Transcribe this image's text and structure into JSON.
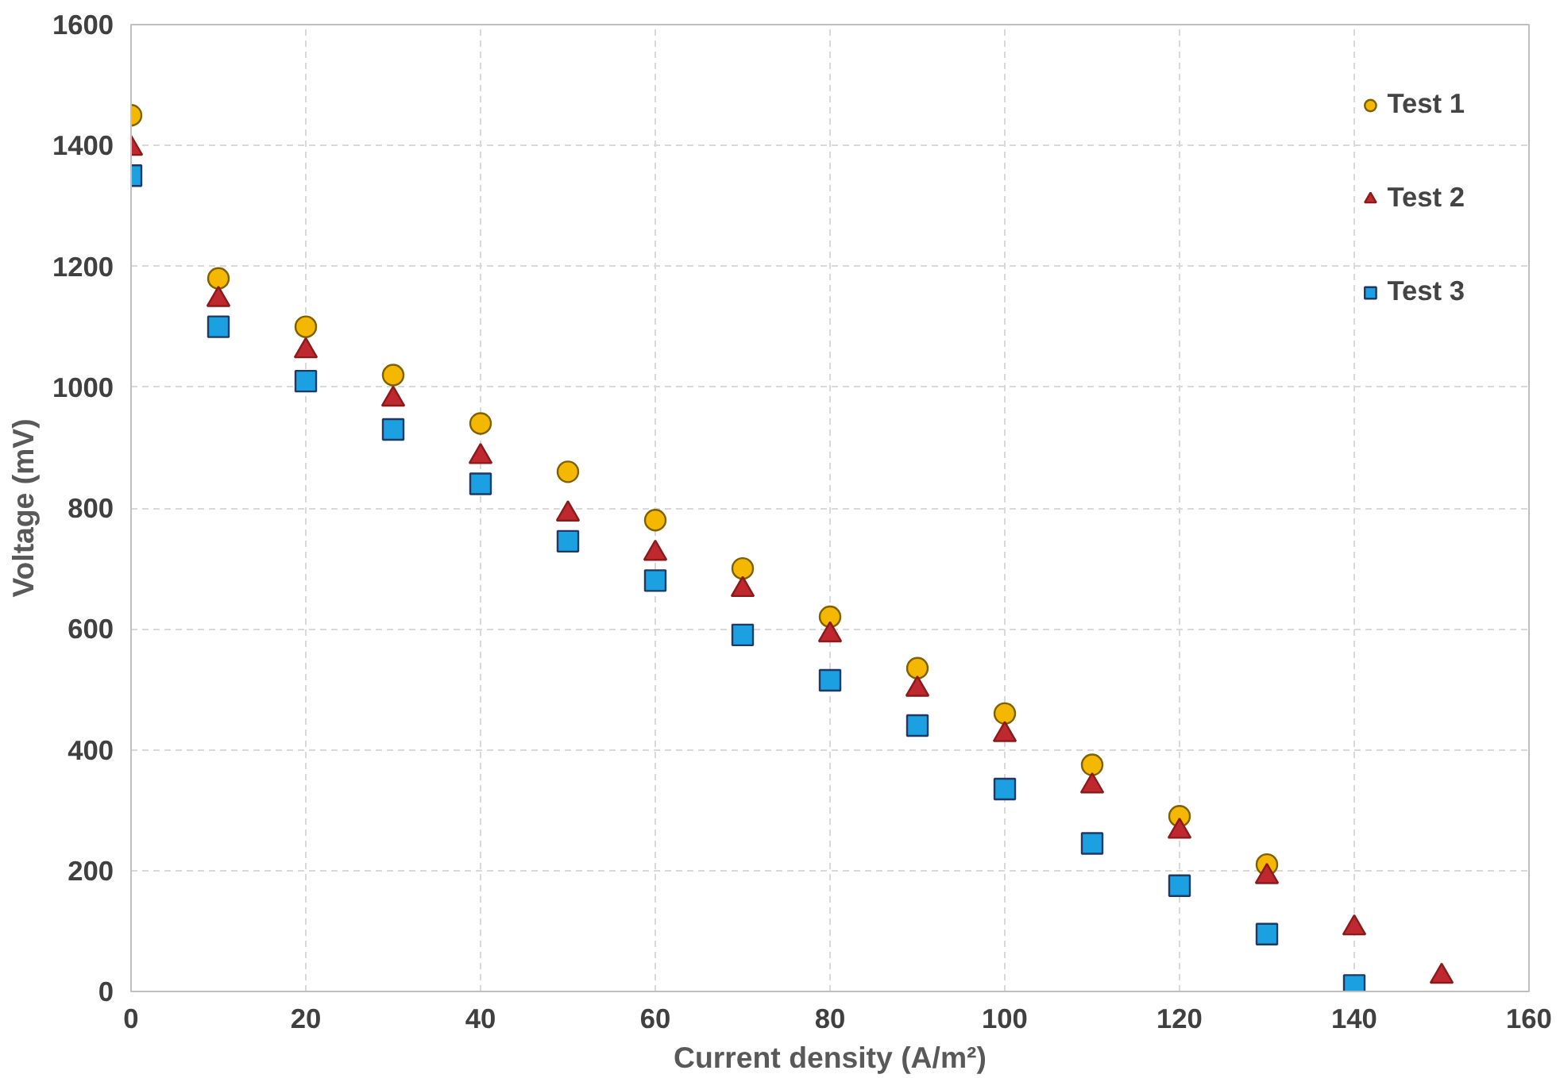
{
  "chart_data": {
    "type": "scatter",
    "xlabel": "Current density (A/m²)",
    "ylabel": "Voltage (mV)",
    "xlim": [
      0,
      160
    ],
    "ylim": [
      0,
      1600
    ],
    "xticks": [
      0,
      20,
      40,
      60,
      80,
      100,
      120,
      140,
      160
    ],
    "yticks": [
      0,
      200,
      400,
      600,
      800,
      1000,
      1200,
      1400,
      1600
    ],
    "grid": true,
    "legend": "top right",
    "series": [
      {
        "name": "Test 1",
        "color": "#f5b800",
        "marker": "circle",
        "x": [
          0,
          10,
          20,
          30,
          40,
          50,
          60,
          70,
          80,
          90,
          100,
          110,
          120,
          130
        ],
        "values": [
          1450,
          1180,
          1100,
          1020,
          940,
          860,
          780,
          700,
          620,
          535,
          460,
          375,
          290,
          210
        ]
      },
      {
        "name": "Test 2",
        "color": "#c0282f",
        "marker": "triangle",
        "x": [
          0,
          10,
          20,
          30,
          40,
          50,
          60,
          70,
          80,
          90,
          100,
          110,
          120,
          130,
          140,
          150
        ],
        "values": [
          1395,
          1145,
          1060,
          980,
          885,
          790,
          725,
          665,
          590,
          500,
          425,
          340,
          265,
          190,
          105,
          25
        ]
      },
      {
        "name": "Test 3",
        "color": "#1ba1e2",
        "marker": "square",
        "x": [
          0,
          10,
          20,
          30,
          40,
          50,
          60,
          70,
          80,
          90,
          100,
          110,
          120,
          130,
          140
        ],
        "values": [
          1350,
          1100,
          1010,
          930,
          840,
          745,
          680,
          590,
          515,
          440,
          335,
          245,
          175,
          95,
          10
        ]
      }
    ]
  }
}
